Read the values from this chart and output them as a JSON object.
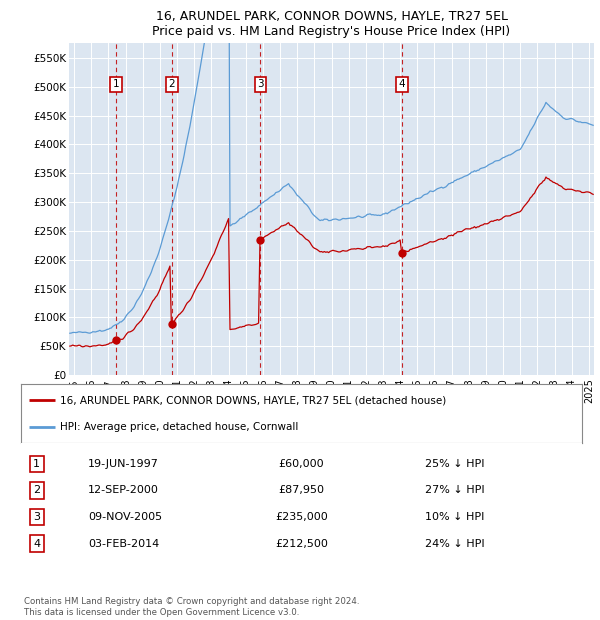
{
  "title": "16, ARUNDEL PARK, CONNOR DOWNS, HAYLE, TR27 5EL",
  "subtitle": "Price paid vs. HM Land Registry's House Price Index (HPI)",
  "hpi_color": "#5b9bd5",
  "price_color": "#c00000",
  "background_color": "#dce6f1",
  "sale_dates": [
    1997.46,
    2000.7,
    2005.86,
    2014.09
  ],
  "sale_prices": [
    60000,
    87950,
    235000,
    212500
  ],
  "sale_labels": [
    "1",
    "2",
    "3",
    "4"
  ],
  "ylim": [
    0,
    575000
  ],
  "yticks": [
    0,
    50000,
    100000,
    150000,
    200000,
    250000,
    300000,
    350000,
    400000,
    450000,
    500000,
    550000
  ],
  "ytick_labels": [
    "£0",
    "£50K",
    "£100K",
    "£150K",
    "£200K",
    "£250K",
    "£300K",
    "£350K",
    "£400K",
    "£450K",
    "£500K",
    "£550K"
  ],
  "xmin": 1994.7,
  "xmax": 2025.3,
  "xtick_years": [
    1995,
    1996,
    1997,
    1998,
    1999,
    2000,
    2001,
    2002,
    2003,
    2004,
    2005,
    2006,
    2007,
    2008,
    2009,
    2010,
    2011,
    2012,
    2013,
    2014,
    2015,
    2016,
    2017,
    2018,
    2019,
    2020,
    2021,
    2022,
    2023,
    2024,
    2025
  ],
  "legend_price_label": "16, ARUNDEL PARK, CONNOR DOWNS, HAYLE, TR27 5EL (detached house)",
  "legend_hpi_label": "HPI: Average price, detached house, Cornwall",
  "table_entries": [
    {
      "num": "1",
      "date": "19-JUN-1997",
      "price": "£60,000",
      "pct": "25% ↓ HPI"
    },
    {
      "num": "2",
      "date": "12-SEP-2000",
      "price": "£87,950",
      "pct": "27% ↓ HPI"
    },
    {
      "num": "3",
      "date": "09-NOV-2005",
      "price": "£235,000",
      "pct": "10% ↓ HPI"
    },
    {
      "num": "4",
      "date": "03-FEB-2014",
      "price": "£212,500",
      "pct": "24% ↓ HPI"
    }
  ],
  "footer": "Contains HM Land Registry data © Crown copyright and database right 2024.\nThis data is licensed under the Open Government Licence v3.0."
}
